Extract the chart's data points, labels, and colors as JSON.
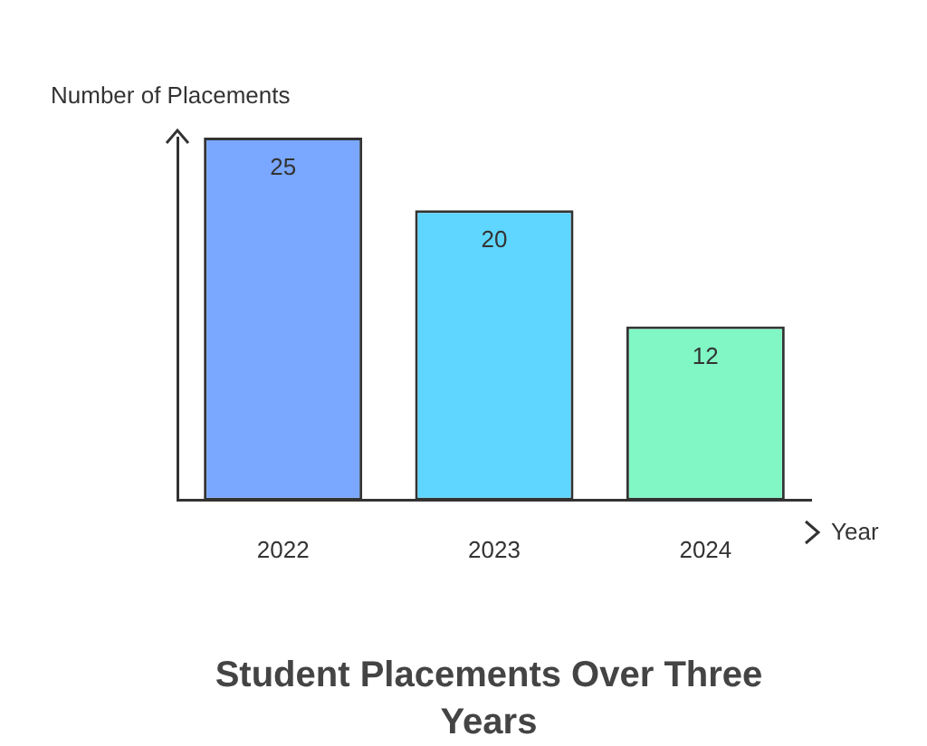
{
  "chart_data": {
    "type": "bar",
    "title": "Student Placements Over Three Years",
    "xlabel": "Year",
    "ylabel": "Number of Placements",
    "categories": [
      "2022",
      "2023",
      "2024"
    ],
    "values": [
      25,
      20,
      12
    ],
    "colors": [
      "#7aa7ff",
      "#5fd6ff",
      "#80f7c4"
    ],
    "data_labels": true,
    "grid": false,
    "legend": false
  }
}
